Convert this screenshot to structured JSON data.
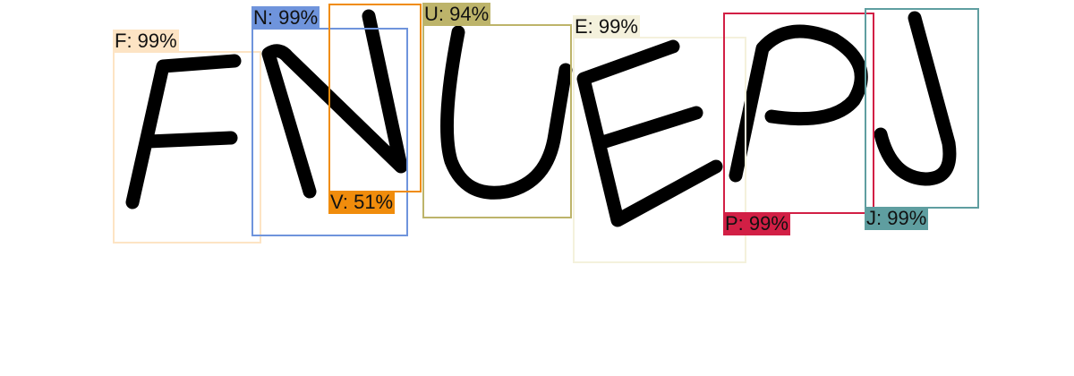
{
  "captcha_text": "FNUEPJ",
  "detections": [
    {
      "id": "F",
      "label": "F: 99%",
      "color": "#fde4c4"
    },
    {
      "id": "N",
      "label": "N: 99%",
      "color": "#6f94dc"
    },
    {
      "id": "V",
      "label": "V: 51%",
      "color": "#f08c0c"
    },
    {
      "id": "U",
      "label": "U: 94%",
      "color": "#bdb46a"
    },
    {
      "id": "E",
      "label": "E: 99%",
      "color": "#f4f1dc"
    },
    {
      "id": "P",
      "label": "P: 99%",
      "color": "#d21f45"
    },
    {
      "id": "J",
      "label": "J: 99%",
      "color": "#5f9ea0"
    }
  ]
}
